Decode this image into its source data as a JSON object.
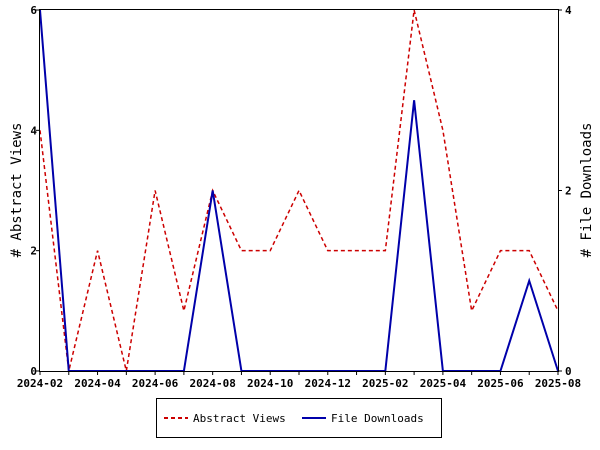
{
  "chart_data": {
    "type": "line",
    "x": [
      "2024-02",
      "2024-03",
      "2024-04",
      "2024-05",
      "2024-06",
      "2024-07",
      "2024-08",
      "2024-09",
      "2024-10",
      "2024-11",
      "2024-12",
      "2025-01",
      "2025-02",
      "2025-03",
      "2025-04",
      "2025-05",
      "2025-06",
      "2025-07",
      "2025-08"
    ],
    "x_tick_labels": [
      "2024-02",
      "2024-04",
      "2024-06",
      "2024-08",
      "2024-10",
      "2024-12",
      "2025-02",
      "2025-04",
      "2025-06",
      "2025-08"
    ],
    "ylabel": "# Abstract Views",
    "y2label": "# File Downloads",
    "ylim": [
      0,
      6
    ],
    "y2lim": [
      0,
      4
    ],
    "y_ticks": [
      "0",
      "2",
      "4",
      "6"
    ],
    "y2_ticks": [
      "0",
      "2",
      "4"
    ],
    "grid": false,
    "legend_position": "bottom",
    "series": [
      {
        "name": "Abstract Views",
        "axis": "left",
        "color": "#cc0000",
        "dash": "dashed",
        "values": [
          4,
          0,
          2,
          0,
          3,
          1,
          3,
          2,
          2,
          3,
          2,
          2,
          2,
          6,
          4,
          1,
          2,
          2,
          1
        ]
      },
      {
        "name": "File Downloads",
        "axis": "right",
        "color": "#0000aa",
        "dash": "solid",
        "values": [
          4,
          0,
          0,
          0,
          0,
          0,
          2,
          0,
          0,
          0,
          0,
          0,
          0,
          3,
          0,
          0,
          0,
          1,
          0
        ]
      }
    ]
  }
}
